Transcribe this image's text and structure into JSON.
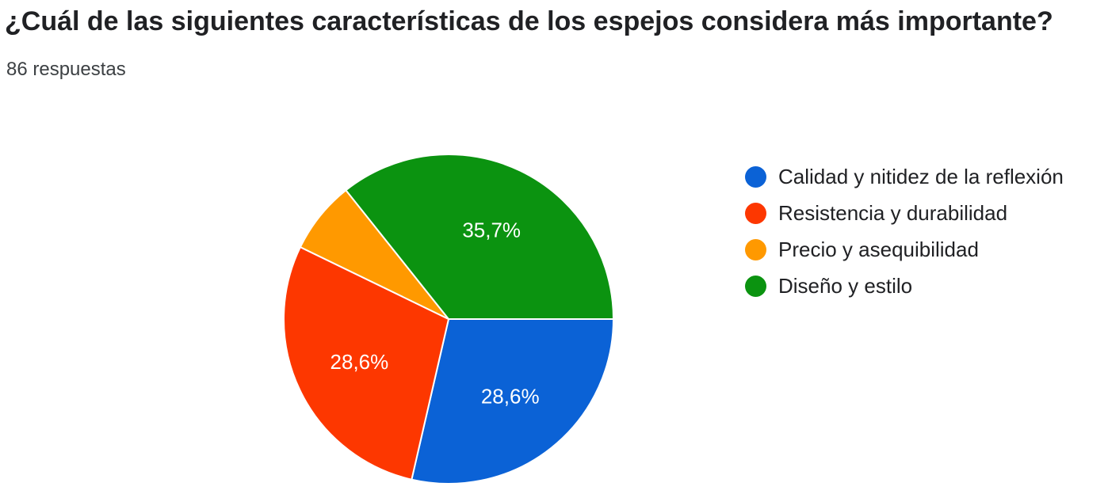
{
  "title": "¿Cuál de las siguientes características de los espejos considera más importante?",
  "subtitle": "86 respuestas",
  "chart_data": {
    "type": "pie",
    "title": "¿Cuál de las siguientes características de los espejos considera más importante?",
    "legend_position": "right",
    "slices": [
      {
        "label": "Calidad y nitidez de la reflexión",
        "value": 28.6,
        "value_label": "28,6%",
        "color": "#0b62d6"
      },
      {
        "label": "Resistencia y durabilidad",
        "value": 28.6,
        "value_label": "28,6%",
        "color": "#fd3700"
      },
      {
        "label": "Precio y asequibilidad",
        "value": 7.1,
        "value_label": "",
        "color": "#ff9900"
      },
      {
        "label": "Diseño y estilo",
        "value": 35.7,
        "value_label": "35,7%",
        "color": "#0b9310"
      }
    ]
  }
}
